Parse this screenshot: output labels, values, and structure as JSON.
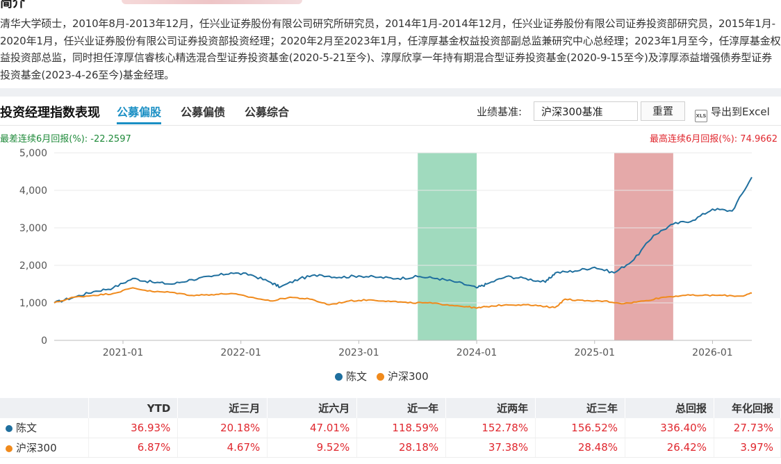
{
  "header": {
    "section_cut_title": "简介",
    "bio": "清华大学硕士，2010年8月-2013年12月，任兴业证券股份有限公司研究所研究员，2014年1月-2014年12月，任兴业证券股份有限公司证券投资部研究员，2015年1月-2020年1月，任兴业证券股份有限公司证券投资部投资经理；2020年2月至2023年1月，任淳厚基金权益投资部副总监兼研究中心总经理；2023年1月至今，任淳厚基金权益投资部总监，同时担任淳厚信睿核心精选混合型证券投资基金(2020-5-21至今)、淳厚欣享一年持有期混合型证券投资基金(2020-9-15至今)及淳厚添益增强债券型证券投资基金(2023-4-26至今)基金经理。"
  },
  "toolbar": {
    "title": "投资经理指数表现",
    "tabs": [
      {
        "label": "公募偏股",
        "active": true
      },
      {
        "label": "公募偏债",
        "active": false
      },
      {
        "label": "公募综合",
        "active": false
      }
    ],
    "benchmark_label": "业绩基准:",
    "benchmark_value": "沪深300基准",
    "reset_label": "重置",
    "excel_icon": "xls-file-icon",
    "excel_label": "导出到Excel"
  },
  "rolling": {
    "min_label": "最差连续6月回报(%):",
    "min_value": "-22.2597",
    "max_label": "最高连续6月回报(%):",
    "max_value": "74.9662"
  },
  "chart_data": {
    "type": "line",
    "x_ticks": [
      "2021-01",
      "2022-01",
      "2023-01",
      "2024-01",
      "2025-01",
      "2026-01"
    ],
    "y_ticks": [
      "0",
      "1,000",
      "2,000",
      "3,000",
      "4,000",
      "5,000"
    ],
    "ylim": [
      0,
      5000
    ],
    "xlim": [
      "2020-06",
      "2026-05"
    ],
    "grid": "horizontal",
    "legend_position": "bottom",
    "highlight_bands": [
      {
        "start": "2023-07",
        "end": "2024-01",
        "color": "#8fd3b3",
        "meaning": "min"
      },
      {
        "start": "2025-03",
        "end": "2025-09",
        "color": "#e09a9a",
        "meaning": "max"
      }
    ],
    "series": [
      {
        "name": "陈文",
        "color": "#1f6f9e",
        "points": [
          [
            "2020-06",
            1000
          ],
          [
            "2020-08",
            1150
          ],
          [
            "2020-10",
            1300
          ],
          [
            "2020-12",
            1400
          ],
          [
            "2021-02",
            1650
          ],
          [
            "2021-04",
            1550
          ],
          [
            "2021-06",
            1500
          ],
          [
            "2021-08",
            1620
          ],
          [
            "2021-10",
            1700
          ],
          [
            "2021-12",
            1800
          ],
          [
            "2022-02",
            1750
          ],
          [
            "2022-04",
            1550
          ],
          [
            "2022-05",
            1420
          ],
          [
            "2022-07",
            1650
          ],
          [
            "2022-09",
            1750
          ],
          [
            "2022-11",
            1680
          ],
          [
            "2023-01",
            1720
          ],
          [
            "2023-03",
            1680
          ],
          [
            "2023-05",
            1650
          ],
          [
            "2023-07",
            1700
          ],
          [
            "2023-09",
            1650
          ],
          [
            "2023-11",
            1550
          ],
          [
            "2024-01",
            1400
          ],
          [
            "2024-02",
            1500
          ],
          [
            "2024-04",
            1700
          ],
          [
            "2024-06",
            1650
          ],
          [
            "2024-08",
            1550
          ],
          [
            "2024-09",
            1800
          ],
          [
            "2024-11",
            1850
          ],
          [
            "2025-01",
            1950
          ],
          [
            "2025-03",
            1800
          ],
          [
            "2025-05",
            2150
          ],
          [
            "2025-07",
            2800
          ],
          [
            "2025-09",
            3100
          ],
          [
            "2025-11",
            3200
          ],
          [
            "2026-01",
            3500
          ],
          [
            "2026-03",
            3450
          ],
          [
            "2026-05",
            4350
          ]
        ]
      },
      {
        "name": "沪深300",
        "color": "#f08a1c",
        "points": [
          [
            "2020-06",
            1000
          ],
          [
            "2020-08",
            1150
          ],
          [
            "2020-10",
            1200
          ],
          [
            "2020-12",
            1250
          ],
          [
            "2021-02",
            1400
          ],
          [
            "2021-04",
            1300
          ],
          [
            "2021-06",
            1280
          ],
          [
            "2021-08",
            1200
          ],
          [
            "2021-10",
            1220
          ],
          [
            "2021-12",
            1250
          ],
          [
            "2022-02",
            1150
          ],
          [
            "2022-04",
            1050
          ],
          [
            "2022-06",
            1150
          ],
          [
            "2022-08",
            1100
          ],
          [
            "2022-10",
            950
          ],
          [
            "2022-12",
            1050
          ],
          [
            "2023-02",
            1080
          ],
          [
            "2023-04",
            1050
          ],
          [
            "2023-06",
            1000
          ],
          [
            "2023-08",
            1000
          ],
          [
            "2023-10",
            950
          ],
          [
            "2023-12",
            900
          ],
          [
            "2024-01",
            860
          ],
          [
            "2024-02",
            900
          ],
          [
            "2024-04",
            950
          ],
          [
            "2024-06",
            950
          ],
          [
            "2024-08",
            900
          ],
          [
            "2024-09",
            880
          ],
          [
            "2024-10",
            1100
          ],
          [
            "2024-12",
            1050
          ],
          [
            "2025-02",
            1050
          ],
          [
            "2025-04",
            980
          ],
          [
            "2025-06",
            1050
          ],
          [
            "2025-08",
            1150
          ],
          [
            "2025-10",
            1200
          ],
          [
            "2025-12",
            1200
          ],
          [
            "2026-02",
            1200
          ],
          [
            "2026-04",
            1180
          ],
          [
            "2026-05",
            1260
          ]
        ]
      }
    ]
  },
  "table": {
    "headers": [
      "",
      "YTD",
      "近三月",
      "近六月",
      "近一年",
      "近两年",
      "近三年",
      "总回报",
      "年化回报"
    ],
    "rows": [
      {
        "name": "陈文",
        "color": "#1f6f9e",
        "values": [
          "36.93%",
          "20.18%",
          "47.01%",
          "118.59%",
          "152.78%",
          "156.52%",
          "336.40%",
          "27.73%"
        ]
      },
      {
        "name": "沪深300",
        "color": "#f08a1c",
        "values": [
          "6.87%",
          "4.67%",
          "9.52%",
          "28.18%",
          "37.38%",
          "28.48%",
          "26.42%",
          "3.97%"
        ]
      }
    ]
  }
}
